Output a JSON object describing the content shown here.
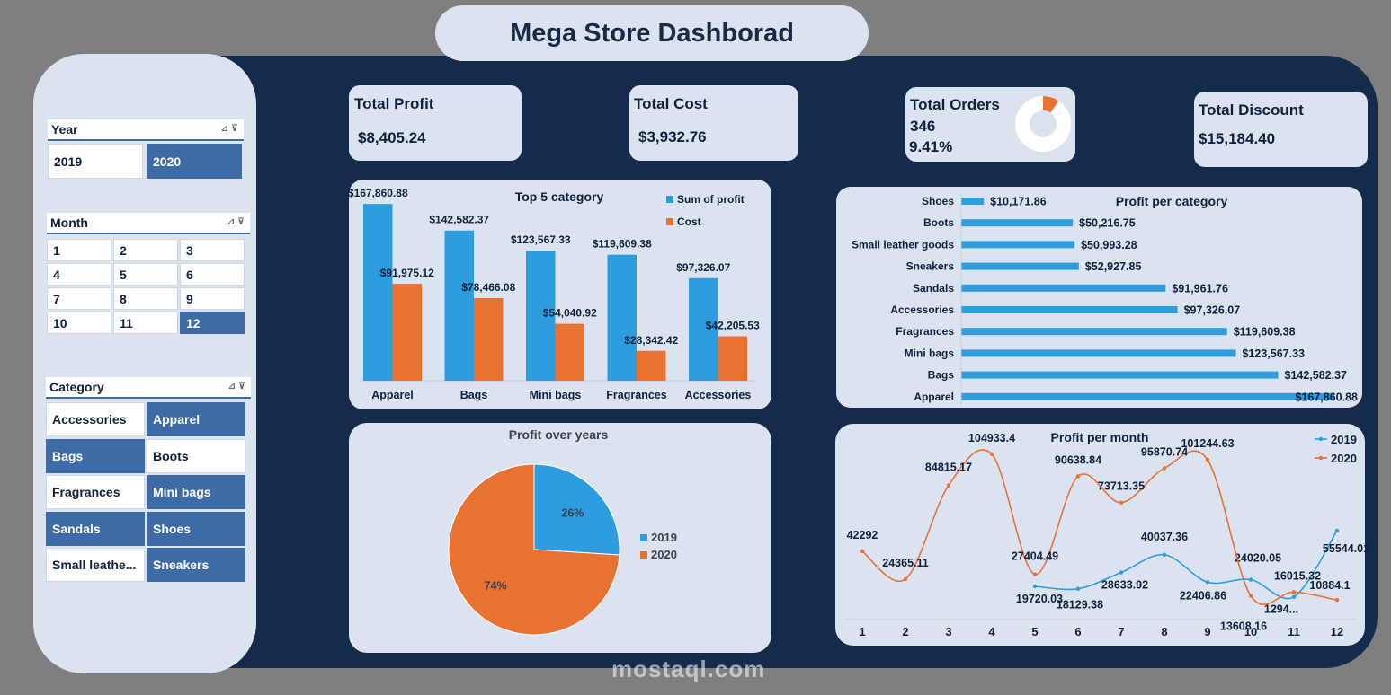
{
  "header": {
    "title": "Mega Store Dashborad"
  },
  "slicers": {
    "year": {
      "title": "Year",
      "items": [
        "2019",
        "2020"
      ],
      "selected": [
        "2020"
      ]
    },
    "month": {
      "title": "Month",
      "items": [
        "1",
        "2",
        "3",
        "4",
        "5",
        "6",
        "7",
        "8",
        "9",
        "10",
        "11",
        "12"
      ],
      "selected": [
        "12"
      ]
    },
    "category": {
      "title": "Category",
      "items": [
        "Accessories",
        "Apparel",
        "Bags",
        "Boots",
        "Fragrances",
        "Mini bags",
        "Sandals",
        "Shoes",
        "Small leathe...",
        "Sneakers"
      ],
      "selected": [
        "Apparel",
        "Bags",
        "Mini bags",
        "Sandals",
        "Shoes",
        "Sneakers"
      ]
    }
  },
  "kpis": {
    "profit": {
      "label": "Total Profit",
      "value": "$8,405.24"
    },
    "cost": {
      "label": "Total Cost",
      "value": "$3,932.76"
    },
    "orders": {
      "label": "Total Orders",
      "value": "346",
      "pct": "9.41%",
      "fraction": 0.0941
    },
    "discount": {
      "label": "Total Discount",
      "value": "$15,184.40"
    }
  },
  "colors": {
    "blue": "#2e9de0",
    "orange": "#e87232",
    "navy": "#152b4c",
    "card": "#dce3f0",
    "slicer_sel": "#3e6aa6"
  },
  "watermark": "mostaql.com",
  "chart_data": [
    {
      "type": "bar",
      "title": "Top 5 category",
      "categories": [
        "Apparel",
        "Bags",
        "Mini bags",
        "Fragrances",
        "Accessories"
      ],
      "series": [
        {
          "name": "Sum of profit",
          "values": [
            167860.88,
            142582.37,
            123567.33,
            119609.38,
            97326.07
          ],
          "labels": [
            "$167,860.88",
            "$142,582.37",
            "$123,567.33",
            "$119,609.38",
            "$97,326.07"
          ]
        },
        {
          "name": "Cost",
          "values": [
            91975.12,
            78466.08,
            54040.92,
            28342.42,
            42205.53
          ],
          "labels": [
            "$91,975.12",
            "$78,466.08",
            "$54,040.92",
            "$28,342.42",
            "$42,205.53"
          ]
        }
      ],
      "ylim": [
        0,
        175000
      ]
    },
    {
      "type": "bar",
      "orientation": "horizontal",
      "title": "Profit per category",
      "categories": [
        "Shoes",
        "Boots",
        "Small leather goods",
        "Sneakers",
        "Sandals",
        "Accessories",
        "Fragrances",
        "Mini bags",
        "Bags",
        "Apparel"
      ],
      "values": [
        10171.86,
        50216.75,
        50993.28,
        52927.85,
        91961.76,
        97326.07,
        119609.38,
        123567.33,
        142582.37,
        167860.88
      ],
      "labels": [
        "$10,171.86",
        "$50,216.75",
        "$50,993.28",
        "$52,927.85",
        "$91,961.76",
        "$97,326.07",
        "$119,609.38",
        "$123,567.33",
        "$142,582.37",
        "$167,860.88"
      ],
      "xlim": [
        0,
        170000
      ]
    },
    {
      "type": "pie",
      "title": "Profit over years",
      "labels": [
        "2019",
        "2020"
      ],
      "values": [
        26,
        74
      ],
      "pct_labels": [
        "26%",
        "74%"
      ]
    },
    {
      "type": "line",
      "title": "Profit per month",
      "x": [
        1,
        2,
        3,
        4,
        5,
        6,
        7,
        8,
        9,
        10,
        11,
        12
      ],
      "series": [
        {
          "name": "2019",
          "values": [
            null,
            null,
            null,
            null,
            19720.03,
            18129.38,
            28633.92,
            40037.36,
            22406.86,
            24020.05,
            12940,
            55544.01
          ],
          "labels": [
            "",
            "",
            "",
            "",
            "19720.03",
            "18129.38",
            "28633.92",
            "40037.36",
            "22406.86",
            "24020.05",
            "1294...",
            "55544.01"
          ]
        },
        {
          "name": "2020",
          "values": [
            42292,
            24365.11,
            84815.17,
            104933.4,
            27404.49,
            90638.84,
            73713.35,
            95870.74,
            101244.63,
            13608.16,
            16015.32,
            10884.1
          ],
          "labels": [
            "42292",
            "24365.11",
            "84815.17",
            "104933.4",
            "27404.49",
            "90638.84",
            "73713.35",
            "95870.74",
            "101244.63",
            "13608.16",
            "16015.32",
            "10884.1"
          ]
        }
      ],
      "ylim": [
        0,
        110000
      ]
    }
  ]
}
